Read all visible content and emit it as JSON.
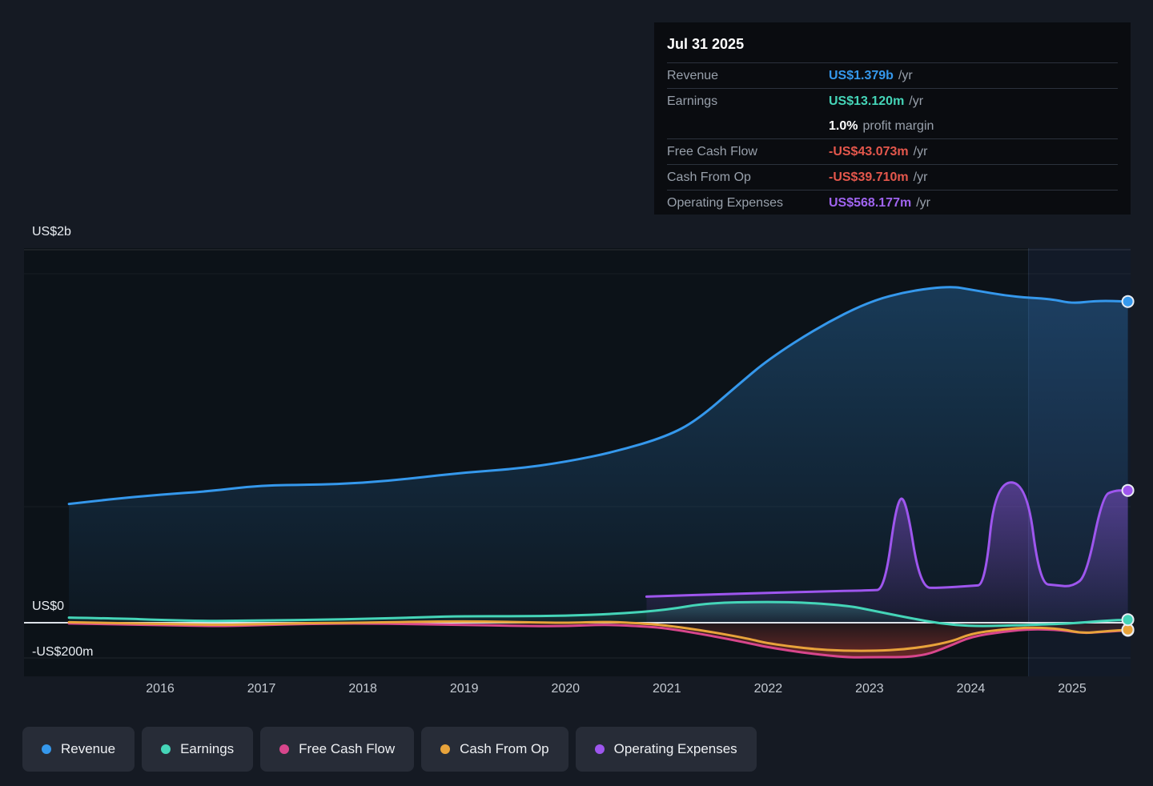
{
  "tooltip": {
    "date": "Jul 31 2025",
    "rows": [
      {
        "label": "Revenue",
        "value": "US$1.379b",
        "suffix": "/yr",
        "color": "#3598ec"
      },
      {
        "label": "Earnings",
        "value": "US$13.120m",
        "suffix": "/yr",
        "color": "#45d5b8"
      },
      {
        "label": "",
        "value": "1.0%",
        "suffix": "profit margin",
        "color": "#ffffff"
      },
      {
        "label": "Free Cash Flow",
        "value": "-US$43.073m",
        "suffix": "/yr",
        "color": "#e4574c"
      },
      {
        "label": "Cash From Op",
        "value": "-US$39.710m",
        "suffix": "/yr",
        "color": "#e4574c"
      },
      {
        "label": "Operating Expenses",
        "value": "US$568.177m",
        "suffix": "/yr",
        "color": "#a064f0"
      }
    ]
  },
  "axis": {
    "y_labels": [
      "US$2b",
      "US$0",
      "-US$200m"
    ],
    "x_years": [
      "2016",
      "2017",
      "2018",
      "2019",
      "2020",
      "2021",
      "2022",
      "2023",
      "2024",
      "2025"
    ]
  },
  "legend": {
    "items": [
      {
        "label": "Revenue",
        "color": "#3598ec"
      },
      {
        "label": "Earnings",
        "color": "#45d5b8"
      },
      {
        "label": "Free Cash Flow",
        "color": "#d8468c"
      },
      {
        "label": "Cash From Op",
        "color": "#e8a33b"
      },
      {
        "label": "Operating Expenses",
        "color": "#9e56ee"
      }
    ]
  },
  "chart_data": {
    "type": "area",
    "unit": "US$ billions",
    "x_axis": "fiscal year",
    "ylim": [
      -0.25,
      2.0
    ],
    "y_gridline_labels": [
      "US$2b",
      "US$0",
      "-US$200m"
    ],
    "grid": true,
    "legend_position": "bottom",
    "highlight_band_start_year": 2024.57,
    "series": [
      {
        "name": "Revenue",
        "color": "#3598ec",
        "x": [
          2015.1,
          2015.5,
          2016,
          2016.5,
          2017,
          2017.5,
          2018,
          2018.5,
          2019,
          2019.5,
          2020,
          2020.5,
          2021,
          2021.3,
          2021.7,
          2022,
          2022.5,
          2023,
          2023.4,
          2023.8,
          2024,
          2024.4,
          2024.8,
          2025,
          2025.25,
          2025.55
        ],
        "y": [
          0.51,
          0.53,
          0.55,
          0.565,
          0.59,
          0.592,
          0.6,
          0.62,
          0.645,
          0.66,
          0.69,
          0.735,
          0.8,
          0.87,
          1.02,
          1.13,
          1.27,
          1.38,
          1.425,
          1.445,
          1.43,
          1.4,
          1.39,
          1.37,
          1.383,
          1.379
        ]
      },
      {
        "name": "Earnings",
        "color": "#45d5b8",
        "x": [
          2015.1,
          2015.6,
          2016,
          2016.5,
          2017,
          2017.6,
          2018,
          2018.6,
          2019,
          2019.5,
          2020,
          2020.5,
          2021,
          2021.4,
          2022,
          2022.4,
          2022.8,
          2023,
          2023.4,
          2023.7,
          2024,
          2024.4,
          2024.8,
          2025,
          2025.3,
          2025.55
        ],
        "y": [
          0.022,
          0.018,
          0.012,
          0.007,
          0.01,
          0.013,
          0.016,
          0.024,
          0.028,
          0.028,
          0.03,
          0.038,
          0.055,
          0.085,
          0.09,
          0.086,
          0.072,
          0.055,
          0.02,
          -0.005,
          -0.02,
          -0.016,
          -0.008,
          -0.003,
          0.008,
          0.013
        ]
      },
      {
        "name": "Free Cash Flow",
        "color": "#d8468c",
        "x": [
          2015.1,
          2015.6,
          2016,
          2016.6,
          2017,
          2017.5,
          2018,
          2018.5,
          2019,
          2019.5,
          2020,
          2020.4,
          2020.8,
          2021,
          2021.4,
          2021.8,
          2022,
          2022.4,
          2022.8,
          2023,
          2023.5,
          2023.8,
          2024,
          2024.3,
          2024.6,
          2024.9,
          2025.1,
          2025.3,
          2025.55
        ],
        "y": [
          -0.004,
          -0.01,
          -0.013,
          -0.02,
          -0.013,
          -0.006,
          -0.004,
          -0.008,
          -0.012,
          -0.018,
          -0.02,
          -0.01,
          -0.022,
          -0.032,
          -0.07,
          -0.115,
          -0.14,
          -0.175,
          -0.198,
          -0.195,
          -0.196,
          -0.13,
          -0.08,
          -0.052,
          -0.035,
          -0.042,
          -0.06,
          -0.052,
          -0.043
        ]
      },
      {
        "name": "Cash From Op",
        "color": "#e8a33b",
        "x": [
          2015.1,
          2015.6,
          2016,
          2016.6,
          2017,
          2017.5,
          2018,
          2018.5,
          2019,
          2019.4,
          2020,
          2020.4,
          2020.8,
          2021,
          2021.4,
          2021.8,
          2022,
          2022.5,
          2023,
          2023.4,
          2023.8,
          2024,
          2024.3,
          2024.6,
          2024.9,
          2025.1,
          2025.3,
          2025.55
        ],
        "y": [
          0.002,
          -0.003,
          -0.006,
          -0.013,
          -0.008,
          -0.002,
          0.0,
          0.004,
          0.006,
          0.004,
          -0.002,
          0.005,
          -0.006,
          -0.016,
          -0.048,
          -0.09,
          -0.118,
          -0.155,
          -0.162,
          -0.15,
          -0.11,
          -0.062,
          -0.038,
          -0.026,
          -0.036,
          -0.06,
          -0.05,
          -0.0397
        ]
      },
      {
        "name": "Operating Expenses",
        "color": "#9e56ee",
        "x": [
          2020.8,
          2021,
          2021.5,
          2022,
          2022.5,
          2023,
          2023.15,
          2023.27,
          2023.36,
          2023.5,
          2023.7,
          2024.0,
          2024.14,
          2024.24,
          2024.55,
          2024.68,
          2024.85,
          2025.0,
          2025.14,
          2025.3,
          2025.42,
          2025.55
        ],
        "y": [
          0.112,
          0.115,
          0.122,
          0.128,
          0.134,
          0.139,
          0.142,
          0.53,
          0.535,
          0.15,
          0.15,
          0.158,
          0.162,
          0.6,
          0.605,
          0.168,
          0.16,
          0.155,
          0.2,
          0.545,
          0.568,
          0.568
        ]
      }
    ]
  }
}
